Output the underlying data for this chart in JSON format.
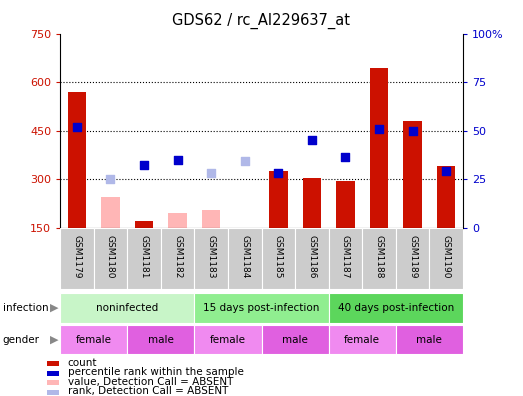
{
  "title": "GDS62 / rc_AI229637_at",
  "samples": [
    "GSM1179",
    "GSM1180",
    "GSM1181",
    "GSM1182",
    "GSM1183",
    "GSM1184",
    "GSM1185",
    "GSM1186",
    "GSM1187",
    "GSM1188",
    "GSM1189",
    "GSM1190"
  ],
  "count_values": [
    570,
    null,
    170,
    null,
    null,
    null,
    325,
    305,
    295,
    645,
    480,
    340
  ],
  "count_absent": [
    null,
    245,
    null,
    195,
    205,
    null,
    null,
    null,
    null,
    null,
    null,
    null
  ],
  "rank_values": [
    460,
    null,
    345,
    360,
    null,
    null,
    320,
    420,
    370,
    455,
    450,
    325
  ],
  "rank_absent": [
    null,
    300,
    null,
    null,
    320,
    355,
    null,
    null,
    null,
    null,
    null,
    null
  ],
  "ylim_left": [
    150,
    750
  ],
  "ylim_right": [
    0,
    100
  ],
  "yticks_left": [
    150,
    300,
    450,
    600,
    750
  ],
  "yticks_right": [
    0,
    25,
    50,
    75,
    100
  ],
  "ytick_labels_right": [
    "0",
    "25",
    "50",
    "75",
    "100%"
  ],
  "grid_lines": [
    300,
    450,
    600
  ],
  "infection_groups": [
    {
      "label": "noninfected",
      "start": 0,
      "end": 4,
      "color": "#c8f5c8"
    },
    {
      "label": "15 days post-infection",
      "start": 4,
      "end": 8,
      "color": "#90ee90"
    },
    {
      "label": "40 days post-infection",
      "start": 8,
      "end": 12,
      "color": "#5cd65c"
    }
  ],
  "gender_groups": [
    {
      "label": "female",
      "start": 0,
      "end": 2,
      "color": "#f08af0"
    },
    {
      "label": "male",
      "start": 2,
      "end": 4,
      "color": "#e060e0"
    },
    {
      "label": "female",
      "start": 4,
      "end": 6,
      "color": "#f08af0"
    },
    {
      "label": "male",
      "start": 6,
      "end": 8,
      "color": "#e060e0"
    },
    {
      "label": "female",
      "start": 8,
      "end": 10,
      "color": "#f08af0"
    },
    {
      "label": "male",
      "start": 10,
      "end": 12,
      "color": "#e060e0"
    }
  ],
  "bar_color_count": "#cc1100",
  "bar_color_count_absent": "#ffb6b6",
  "dot_color_rank": "#0000cc",
  "dot_color_rank_absent": "#b0b8e8",
  "dot_size": 30,
  "legend_items": [
    {
      "label": "count",
      "color": "#cc1100"
    },
    {
      "label": "percentile rank within the sample",
      "color": "#0000cc"
    },
    {
      "label": "value, Detection Call = ABSENT",
      "color": "#ffb6b6"
    },
    {
      "label": "rank, Detection Call = ABSENT",
      "color": "#b0b8e8"
    }
  ]
}
